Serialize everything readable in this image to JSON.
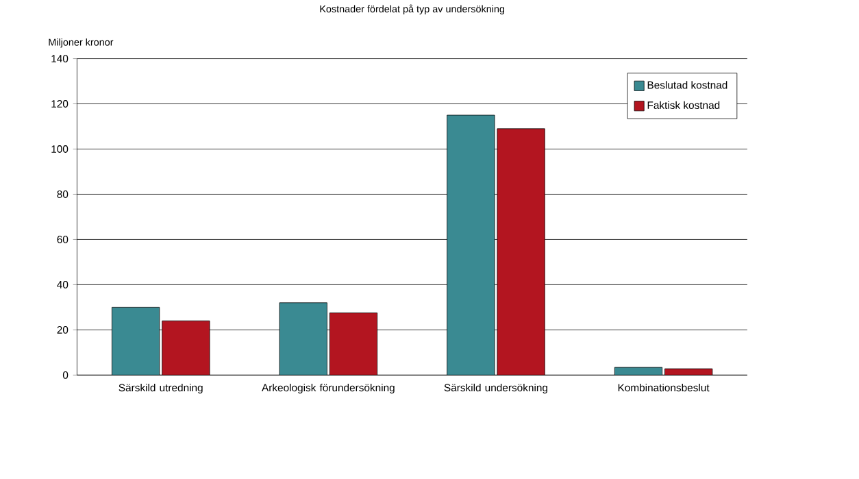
{
  "chart_data": {
    "type": "bar",
    "title": "Kostnader fördelat på typ av undersökning",
    "ylabel": "Miljoner kronor",
    "categories": [
      "Särskild utredning",
      "Arkeologisk förundersökning",
      "Särskild undersökning",
      "Kombinationsbeslut"
    ],
    "series": [
      {
        "name": "Beslutad kostnad",
        "color": "#3a8a92",
        "values": [
          30,
          32,
          115,
          3.4
        ]
      },
      {
        "name": "Faktisk kostnad",
        "color": "#b31520",
        "values": [
          24,
          27.5,
          109,
          2.8
        ]
      }
    ],
    "ylim": [
      0,
      140
    ],
    "yticks": [
      0,
      20,
      40,
      60,
      80,
      100,
      120,
      140
    ],
    "grid": "y",
    "legend": "top right"
  }
}
